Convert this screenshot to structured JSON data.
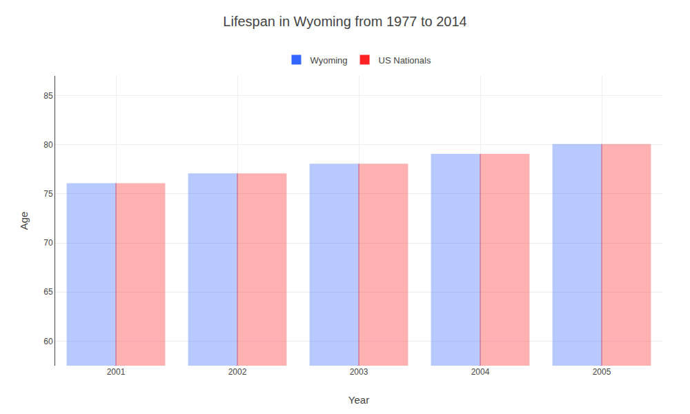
{
  "chart_data": {
    "type": "bar",
    "title": "Lifespan in Wyoming from 1977 to 2014",
    "xlabel": "Year",
    "ylabel": "Age",
    "categories": [
      "2001",
      "2002",
      "2003",
      "2004",
      "2005"
    ],
    "series": [
      {
        "name": "Wyoming",
        "color": "#3366ff",
        "values": [
          76,
          77,
          78,
          79,
          80
        ]
      },
      {
        "name": "US Nationals",
        "color": "#ff2222",
        "values": [
          76,
          77,
          78,
          79,
          80
        ]
      }
    ],
    "ylim": [
      57.5,
      87
    ],
    "yticks": [
      60,
      65,
      70,
      75,
      80,
      85
    ],
    "grid": true,
    "legend": "upper center"
  }
}
